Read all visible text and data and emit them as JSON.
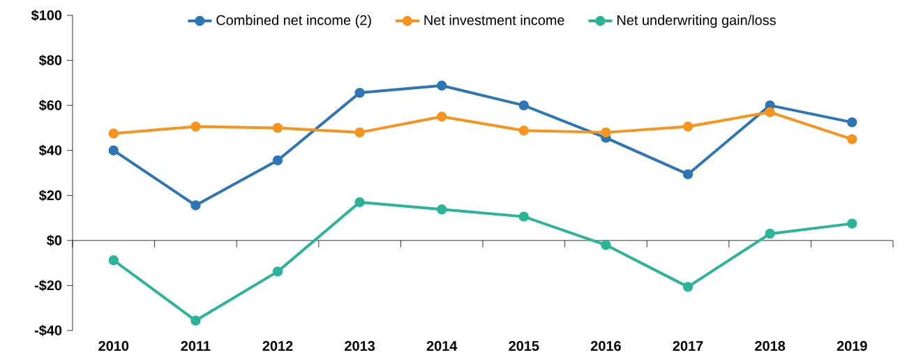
{
  "chart_data": {
    "type": "line",
    "categories": [
      "2010",
      "2011",
      "2012",
      "2013",
      "2014",
      "2015",
      "2016",
      "2017",
      "2018",
      "2019"
    ],
    "series": [
      {
        "name": "Combined net income (2)",
        "color": "#2e75b6",
        "values": [
          40,
          15.6,
          35.6,
          65.6,
          68.8,
          60,
          45.6,
          29.4,
          60,
          52.5
        ]
      },
      {
        "name": "Net investment income",
        "color": "#f7941d",
        "values": [
          47.5,
          50.6,
          50,
          48,
          55,
          48.8,
          48,
          50.6,
          57,
          45
        ]
      },
      {
        "name": "Net underwriting gain/loss",
        "color": "#2ab598",
        "values": [
          -8.8,
          -35.6,
          -13.8,
          17,
          13.8,
          10.6,
          -2,
          -20.6,
          3,
          7.5
        ]
      }
    ],
    "ylim": [
      -40,
      100
    ],
    "yticks": [
      {
        "value": -40,
        "label": "-$40"
      },
      {
        "value": -20,
        "label": "-$20"
      },
      {
        "value": 0,
        "label": "$0"
      },
      {
        "value": 20,
        "label": "$20"
      },
      {
        "value": 40,
        "label": "$40"
      },
      {
        "value": 60,
        "label": "$60"
      },
      {
        "value": 80,
        "label": "$80"
      },
      {
        "value": 100,
        "label": "$100"
      }
    ],
    "legend": "top",
    "marker": "circle",
    "line_style": "solid"
  }
}
